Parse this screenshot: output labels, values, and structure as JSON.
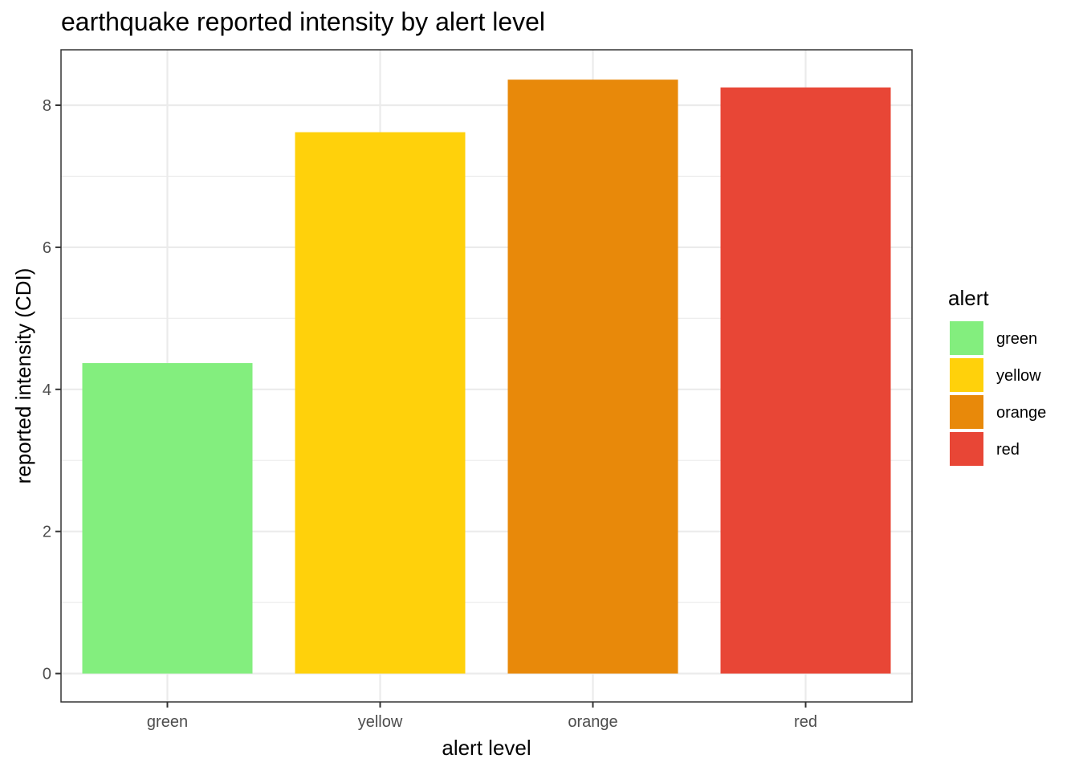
{
  "chart_data": {
    "type": "bar",
    "title": "earthquake reported intensity by alert level",
    "xlabel": "alert level",
    "ylabel": "reported intensity (CDI)",
    "categories": [
      "green",
      "yellow",
      "orange",
      "red"
    ],
    "values": [
      4.37,
      7.62,
      8.36,
      8.25
    ],
    "colors": [
      "#83EE7E",
      "#FFD10B",
      "#E8890A",
      "#E84636"
    ],
    "ylim": [
      -0.4,
      8.78
    ],
    "yticks": [
      0,
      2,
      4,
      6,
      8
    ],
    "grid": true,
    "legend": {
      "title": "alert",
      "position": "right",
      "entries": [
        "green",
        "yellow",
        "orange",
        "red"
      ]
    }
  }
}
